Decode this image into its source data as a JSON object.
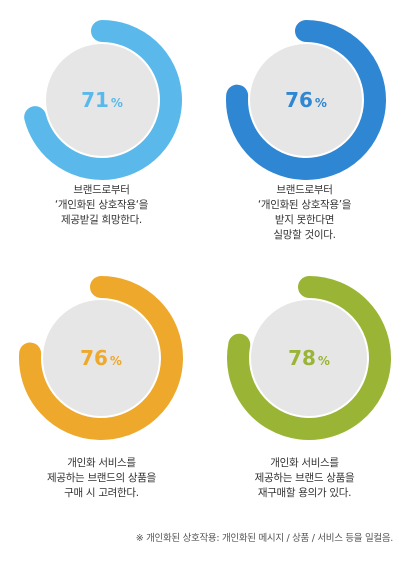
{
  "chart_data": [
    {
      "type": "donut",
      "value": 71,
      "value_text": "71",
      "unit": "%",
      "color": "#5ab9ea",
      "track_color": "#e6e6e6",
      "lines": [
        "브랜드로부터",
        "‘개인화된 상호작용‘을",
        "제공받길 희망한다."
      ]
    },
    {
      "type": "donut",
      "value": 76,
      "value_text": "76",
      "unit": "%",
      "color": "#2f86d3",
      "track_color": "#e6e6e6",
      "lines": [
        "브랜드로부터",
        "‘개인화된 상호작용’을",
        "받지 못한다면",
        "실망할 것이다."
      ]
    },
    {
      "type": "donut",
      "value": 76,
      "value_text": "76",
      "unit": "%",
      "color": "#eea82b",
      "track_color": "#e6e6e6",
      "lines": [
        "개인화 서비스를",
        "제공하는 브랜드의 상품을",
        "구매 시 고려한다."
      ]
    },
    {
      "type": "donut",
      "value": 78,
      "value_text": "78",
      "unit": "%",
      "color": "#9ab535",
      "track_color": "#e6e6e6",
      "lines": [
        "개인화 서비스를",
        "제공하는 브랜드 상품을",
        "재구매할 용의가 있다."
      ]
    }
  ],
  "footnote": "※ 개인화된 상호작용: 개인화된 메시지 / 상품 / 서비스 등을 일컬음."
}
